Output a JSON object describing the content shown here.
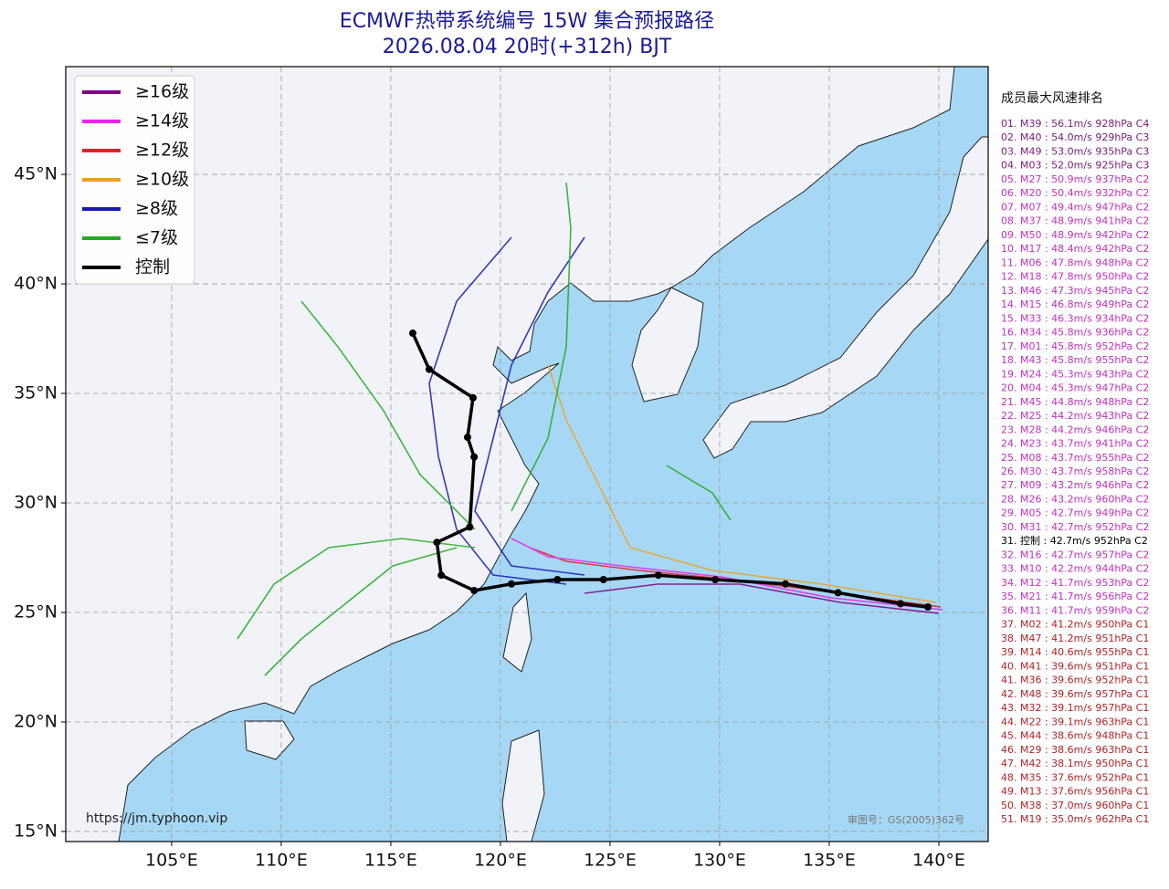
{
  "title": "ECMWF热带系统编号 15W 集合预报路径",
  "subtitle": "2026.08.04 20时(+312h) BJT",
  "map": {
    "xlim": [
      100.17,
      142.25
    ],
    "ylim": [
      14.54,
      49.92
    ],
    "grid": true,
    "xticks": [
      {
        "value": 105,
        "label": "105°E"
      },
      {
        "value": 110,
        "label": "110°E"
      },
      {
        "value": 115,
        "label": "115°E"
      },
      {
        "value": 120,
        "label": "120°E"
      },
      {
        "value": 125,
        "label": "125°E"
      },
      {
        "value": 130,
        "label": "130°E"
      },
      {
        "value": 135,
        "label": "135°E"
      },
      {
        "value": 140,
        "label": "140°E"
      }
    ],
    "yticks": [
      {
        "value": 15,
        "label": "15°N"
      },
      {
        "value": 20,
        "label": "20°N"
      },
      {
        "value": 25,
        "label": "25°N"
      },
      {
        "value": 30,
        "label": "30°N"
      },
      {
        "value": 35,
        "label": "35°N"
      },
      {
        "value": 40,
        "label": "40°N"
      },
      {
        "value": 45,
        "label": "45°N"
      }
    ],
    "control_track": {
      "color": "#000000",
      "lon": [
        139.5,
        138.25,
        135.4,
        133.0,
        129.8,
        127.2,
        124.7,
        122.6,
        120.5,
        118.8,
        117.3,
        117.1,
        118.6,
        118.8,
        118.5,
        118.75,
        116.75,
        116.0
      ],
      "lat": [
        25.25,
        25.4,
        25.9,
        26.3,
        26.5,
        26.7,
        26.5,
        26.5,
        26.3,
        26.0,
        26.7,
        28.2,
        28.9,
        32.1,
        33.0,
        34.8,
        36.1,
        37.75
      ]
    }
  },
  "legend": [
    {
      "name": "≥16级",
      "color": "#800080"
    },
    {
      "name": "≥14级",
      "color": "#ee22ee"
    },
    {
      "name": "≥12级",
      "color": "#dd2222"
    },
    {
      "name": "≥10级",
      "color": "#f0a020"
    },
    {
      "name": "≥8级",
      "color": "#1a1ab0"
    },
    {
      "name": "≤7级",
      "color": "#22aa22"
    },
    {
      "name": "控制",
      "color": "#000000"
    }
  ],
  "ranking": {
    "title": "成员最大风速排名",
    "entries": [
      {
        "text": "01. M39 : 56.1m/s 928hPa C4",
        "color": "#7a1a7a"
      },
      {
        "text": "02. M40 : 54.0m/s 929hPa C3",
        "color": "#7a1a7a"
      },
      {
        "text": "03. M49 : 53.0m/s 935hPa C3",
        "color": "#7a1a7a"
      },
      {
        "text": "04. M03 : 52.0m/s 925hPa C3",
        "color": "#7a1a7a"
      },
      {
        "text": "05. M27 : 50.9m/s 937hPa C2",
        "color": "#c030c0"
      },
      {
        "text": "06. M20 : 50.4m/s 932hPa C2",
        "color": "#c030c0"
      },
      {
        "text": "07. M07 : 49.4m/s 947hPa C2",
        "color": "#c030c0"
      },
      {
        "text": "08. M37 : 48.9m/s 941hPa C2",
        "color": "#c030c0"
      },
      {
        "text": "09. M50 : 48.9m/s 942hPa C2",
        "color": "#c030c0"
      },
      {
        "text": "10. M17 : 48.4m/s 942hPa C2",
        "color": "#c030c0"
      },
      {
        "text": "11. M06 : 47.8m/s 948hPa C2",
        "color": "#c030c0"
      },
      {
        "text": "12. M18 : 47.8m/s 950hPa C2",
        "color": "#c030c0"
      },
      {
        "text": "13. M46 : 47.3m/s 945hPa C2",
        "color": "#c030c0"
      },
      {
        "text": "14. M15 : 46.8m/s 949hPa C2",
        "color": "#c030c0"
      },
      {
        "text": "15. M33 : 46.3m/s 934hPa C2",
        "color": "#c030c0"
      },
      {
        "text": "16. M34 : 45.8m/s 936hPa C2",
        "color": "#c030c0"
      },
      {
        "text": "17. M01 : 45.8m/s 952hPa C2",
        "color": "#c030c0"
      },
      {
        "text": "18. M43 : 45.8m/s 955hPa C2",
        "color": "#c030c0"
      },
      {
        "text": "19. M24 : 45.3m/s 943hPa C2",
        "color": "#c030c0"
      },
      {
        "text": "20. M04 : 45.3m/s 947hPa C2",
        "color": "#c030c0"
      },
      {
        "text": "21. M45 : 44.8m/s 948hPa C2",
        "color": "#c030c0"
      },
      {
        "text": "22. M25 : 44.2m/s 943hPa C2",
        "color": "#c030c0"
      },
      {
        "text": "23. M28 : 44.2m/s 946hPa C2",
        "color": "#c030c0"
      },
      {
        "text": "24. M23 : 43.7m/s 941hPa C2",
        "color": "#c030c0"
      },
      {
        "text": "25. M08 : 43.7m/s 955hPa C2",
        "color": "#c030c0"
      },
      {
        "text": "26. M30 : 43.7m/s 958hPa C2",
        "color": "#c030c0"
      },
      {
        "text": "27. M09 : 43.2m/s 946hPa C2",
        "color": "#c030c0"
      },
      {
        "text": "28. M26 : 43.2m/s 960hPa C2",
        "color": "#c030c0"
      },
      {
        "text": "29. M05 : 42.7m/s 949hPa C2",
        "color": "#c030c0"
      },
      {
        "text": "30. M31 : 42.7m/s 952hPa C2",
        "color": "#c030c0"
      },
      {
        "text": "31. 控制 : 42.7m/s 952hPa C2",
        "color": "#000000"
      },
      {
        "text": "32. M16 : 42.7m/s 957hPa C2",
        "color": "#c030c0"
      },
      {
        "text": "33. M10 : 42.2m/s 944hPa C2",
        "color": "#c030c0"
      },
      {
        "text": "34. M12 : 41.7m/s 953hPa C2",
        "color": "#c030c0"
      },
      {
        "text": "35. M21 : 41.7m/s 956hPa C2",
        "color": "#c030c0"
      },
      {
        "text": "36. M11 : 41.7m/s 959hPa C2",
        "color": "#c030c0"
      },
      {
        "text": "37. M02 : 41.2m/s 950hPa C1",
        "color": "#b22222"
      },
      {
        "text": "38. M47 : 41.2m/s 951hPa C1",
        "color": "#b22222"
      },
      {
        "text": "39. M14 : 40.6m/s 955hPa C1",
        "color": "#b22222"
      },
      {
        "text": "40. M41 : 39.6m/s 951hPa C1",
        "color": "#b22222"
      },
      {
        "text": "41. M36 : 39.6m/s 952hPa C1",
        "color": "#b22222"
      },
      {
        "text": "42. M48 : 39.6m/s 957hPa C1",
        "color": "#b22222"
      },
      {
        "text": "43. M32 : 39.1m/s 957hPa C1",
        "color": "#b22222"
      },
      {
        "text": "44. M22 : 39.1m/s 963hPa C1",
        "color": "#b22222"
      },
      {
        "text": "45. M44 : 38.6m/s 948hPa C1",
        "color": "#b22222"
      },
      {
        "text": "46. M29 : 38.6m/s 963hPa C1",
        "color": "#b22222"
      },
      {
        "text": "47. M42 : 38.1m/s 950hPa C1",
        "color": "#b22222"
      },
      {
        "text": "48. M35 : 37.6m/s 952hPa C1",
        "color": "#b22222"
      },
      {
        "text": "49. M13 : 37.6m/s 956hPa C1",
        "color": "#b22222"
      },
      {
        "text": "50. M38 : 37.0m/s 960hPa C1",
        "color": "#b22222"
      },
      {
        "text": "51. M19 : 35.0m/s 962hPa C1",
        "color": "#b22222"
      }
    ]
  },
  "source_url": "https://jm.typhoon.vip",
  "approval_number": "审图号：GS(2005)362号"
}
